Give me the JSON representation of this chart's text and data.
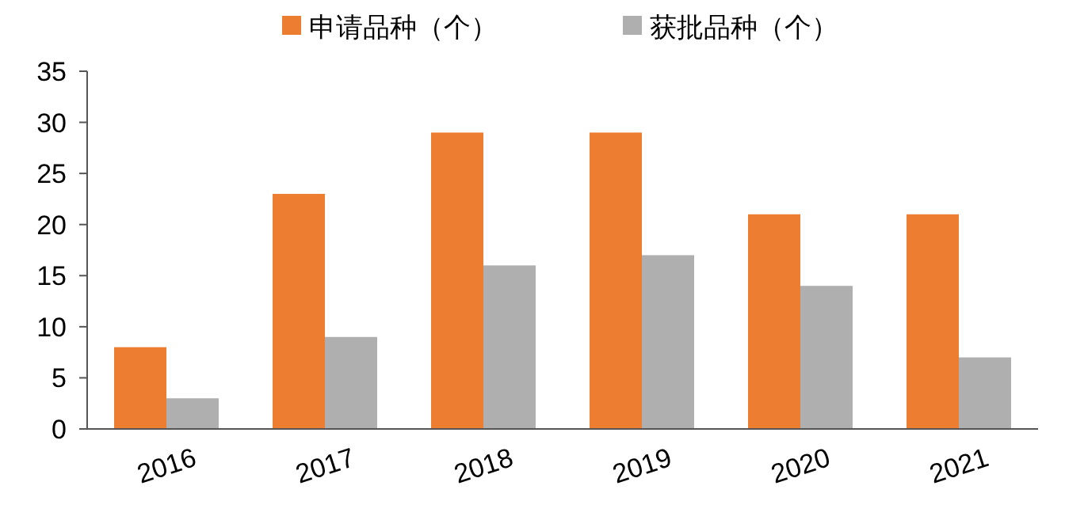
{
  "chart_data": {
    "type": "bar",
    "categories": [
      "2016",
      "2017",
      "2018",
      "2019",
      "2020",
      "2021"
    ],
    "series": [
      {
        "name": "申请品种（个）",
        "color": "#ed7d31",
        "values": [
          8,
          23,
          29,
          29,
          21,
          21
        ]
      },
      {
        "name": "获批品种（个）",
        "color": "#afafaf",
        "values": [
          3,
          9,
          16,
          17,
          14,
          7
        ]
      }
    ],
    "ylim": [
      0,
      35
    ],
    "yticks": [
      0,
      5,
      10,
      15,
      20,
      25,
      30,
      35
    ],
    "grid": false,
    "legend": "top"
  }
}
